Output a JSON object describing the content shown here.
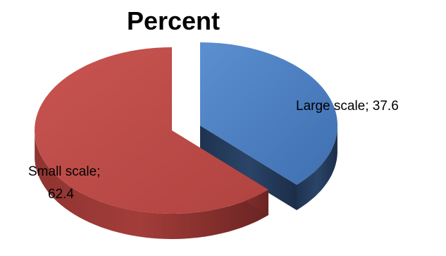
{
  "chart_data": {
    "type": "pie",
    "style": "3d-exploded",
    "title": "Percent",
    "categories": [
      "Large scale",
      "Small scale"
    ],
    "values": [
      37.6,
      62.4
    ],
    "data_labels": [
      "Large scale; 37.6",
      "Small scale; 62.4"
    ],
    "colors": {
      "Large scale": "#4f81bd",
      "Small scale": "#c0504d",
      "Large scale_side": "#243a5c",
      "Small scale_side": "#7a2c2a"
    },
    "legend": "none"
  }
}
